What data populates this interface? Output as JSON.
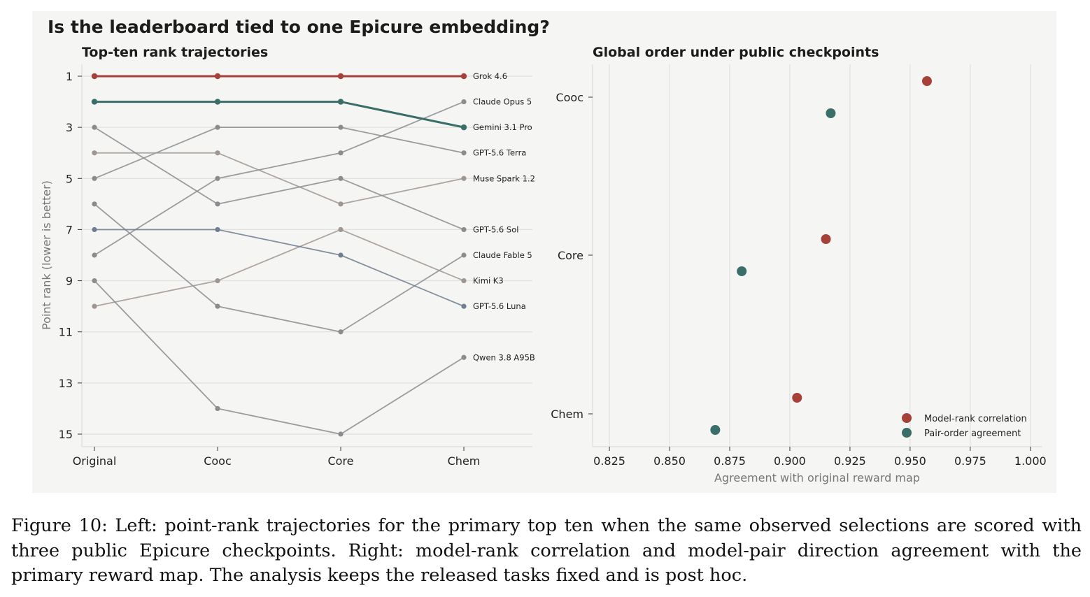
{
  "figure": {
    "suptitle": "Is the leaderboard tied to one Epicure embedding?",
    "caption": "Figure 10: Left: point-rank trajectories for the primary top ten when the same observed selections are scored with three public Epicure checkpoints. Right: model-rank correlation and model-pair direction agreement with the primary reward map. The analysis keeps the released tasks fixed and is post hoc."
  },
  "colors": {
    "red": "#a8403a",
    "teal": "#3a6e68",
    "slate": "#6f7f8f",
    "gray": "#8a8c8e",
    "warmgray": "#a09690",
    "panel": "#f5f5f3",
    "grid": "#dcdcdc"
  },
  "chart_data": [
    {
      "type": "line",
      "title": "Top-ten rank trajectories",
      "xlabel": "",
      "ylabel": "Point rank (lower is better)",
      "categories": [
        "Original",
        "Cooc",
        "Core",
        "Chem"
      ],
      "ylim": [
        15,
        1
      ],
      "y_inverted": true,
      "yticks": [
        1,
        3,
        5,
        7,
        9,
        11,
        13,
        15
      ],
      "grid": "horizontal",
      "series": [
        {
          "name": "Grok 4.6",
          "values": [
            1,
            1,
            1,
            1
          ],
          "color": "red",
          "emphasis": true
        },
        {
          "name": "Claude Opus 5",
          "values": [
            8,
            5,
            4,
            2
          ],
          "color": "gray"
        },
        {
          "name": "Gemini 3.1 Pro",
          "values": [
            2,
            2,
            2,
            3
          ],
          "color": "teal",
          "emphasis": true
        },
        {
          "name": "GPT-5.6 Terra",
          "values": [
            5,
            3,
            3,
            4
          ],
          "color": "gray"
        },
        {
          "name": "Muse Spark 1.2",
          "values": [
            4,
            4,
            6,
            5
          ],
          "color": "warmgray"
        },
        {
          "name": "GPT-5.6 Sol",
          "values": [
            3,
            6,
            5,
            7
          ],
          "color": "gray"
        },
        {
          "name": "Claude Fable 5",
          "values": [
            6,
            10,
            11,
            8
          ],
          "color": "gray"
        },
        {
          "name": "Kimi K3",
          "values": [
            10,
            9,
            7,
            9
          ],
          "color": "warmgray"
        },
        {
          "name": "GPT-5.6 Luna",
          "values": [
            7,
            7,
            8,
            10
          ],
          "color": "slate"
        },
        {
          "name": "Qwen 3.8 A95B",
          "values": [
            9,
            14,
            15,
            12
          ],
          "color": "gray"
        }
      ]
    },
    {
      "type": "scatter",
      "title": "Global order under public checkpoints",
      "xlabel": "Agreement with original reward map",
      "ylabel": "",
      "categories": [
        "Cooc",
        "Core",
        "Chem"
      ],
      "xlim": [
        0.818,
        1.005
      ],
      "xticks": [
        "0.825",
        "0.850",
        "0.875",
        "0.900",
        "0.925",
        "0.950",
        "0.975",
        "1.000"
      ],
      "grid": "vertical",
      "legend": "lower-right",
      "series": [
        {
          "name": "Model-rank correlation",
          "color": "red",
          "values": [
            0.957,
            0.915,
            0.903
          ]
        },
        {
          "name": "Pair-order agreement",
          "color": "teal",
          "values": [
            0.917,
            0.88,
            0.869
          ]
        }
      ]
    }
  ]
}
